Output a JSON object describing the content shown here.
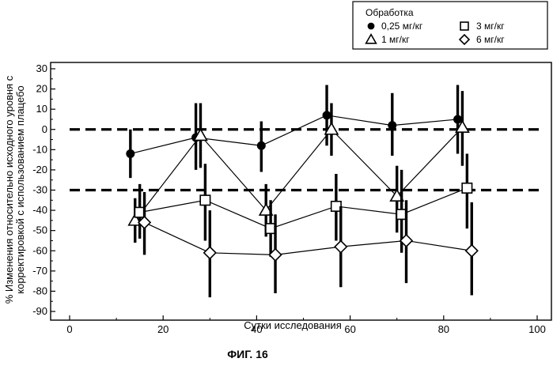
{
  "chart_data": {
    "type": "scatter",
    "title": "",
    "xlabel": "Сутки исследования",
    "ylabel_lines": [
      "% Изменения относительно исходного уровня с",
      "корректировкой с использованием плацебо"
    ],
    "xlim": [
      -4,
      100
    ],
    "ylim": [
      -95,
      32
    ],
    "xticks": [
      0,
      20,
      40,
      60,
      80,
      100
    ],
    "yticks": [
      30,
      20,
      10,
      0,
      -10,
      -20,
      -30,
      -40,
      -50,
      -60,
      -70,
      -80,
      -90
    ],
    "grid": false,
    "reference_lines": [
      0,
      -30
    ],
    "legend": {
      "title": "Обработка",
      "placement": "top-right",
      "entries": [
        {
          "series": 0,
          "label": "0,25 мг/кг"
        },
        {
          "series": 2,
          "label": "3 мг/кг"
        },
        {
          "series": 1,
          "label": "1 мг/кг"
        },
        {
          "series": 3,
          "label": "6 мг/кг"
        }
      ]
    },
    "series": [
      {
        "name": "0,25 мг/кг",
        "marker": "circle",
        "points": [
          {
            "x": 13,
            "y": -12,
            "lo": -24,
            "hi": 0
          },
          {
            "x": 27,
            "y": -4,
            "lo": -20,
            "hi": 13
          },
          {
            "x": 41,
            "y": -8,
            "lo": -21,
            "hi": 4
          },
          {
            "x": 55,
            "y": 7,
            "lo": -8,
            "hi": 22
          },
          {
            "x": 69,
            "y": 2,
            "lo": -13,
            "hi": 18
          },
          {
            "x": 83,
            "y": 5,
            "lo": -12,
            "hi": 22
          }
        ]
      },
      {
        "name": "1 мг/кг",
        "marker": "triangle",
        "points": [
          {
            "x": 14,
            "y": -45,
            "lo": -56,
            "hi": -34
          },
          {
            "x": 28,
            "y": -3,
            "lo": -19,
            "hi": 13
          },
          {
            "x": 42,
            "y": -40,
            "lo": -53,
            "hi": -27
          },
          {
            "x": 56,
            "y": 0,
            "lo": -13,
            "hi": 13
          },
          {
            "x": 70,
            "y": -33,
            "lo": -51,
            "hi": -18
          },
          {
            "x": 84,
            "y": 1,
            "lo": -18,
            "hi": 19
          }
        ]
      },
      {
        "name": "3 мг/кг",
        "marker": "square",
        "points": [
          {
            "x": 15,
            "y": -41,
            "lo": -54,
            "hi": -27
          },
          {
            "x": 29,
            "y": -35,
            "lo": -55,
            "hi": -17
          },
          {
            "x": 43,
            "y": -49,
            "lo": -63,
            "hi": -35
          },
          {
            "x": 57,
            "y": -38,
            "lo": -55,
            "hi": -22
          },
          {
            "x": 71,
            "y": -42,
            "lo": -61,
            "hi": -20
          },
          {
            "x": 85,
            "y": -29,
            "lo": -49,
            "hi": -12
          }
        ]
      },
      {
        "name": "6 мг/кг",
        "marker": "diamond",
        "points": [
          {
            "x": 16,
            "y": -46,
            "lo": -62,
            "hi": -31
          },
          {
            "x": 30,
            "y": -61,
            "lo": -83,
            "hi": -40
          },
          {
            "x": 44,
            "y": -62,
            "lo": -81,
            "hi": -42
          },
          {
            "x": 58,
            "y": -58,
            "lo": -78,
            "hi": -38
          },
          {
            "x": 72,
            "y": -55,
            "lo": -76,
            "hi": -35
          },
          {
            "x": 86,
            "y": -60,
            "lo": -82,
            "hi": -36
          }
        ]
      }
    ]
  },
  "figure_label": "ФИГ. 16"
}
